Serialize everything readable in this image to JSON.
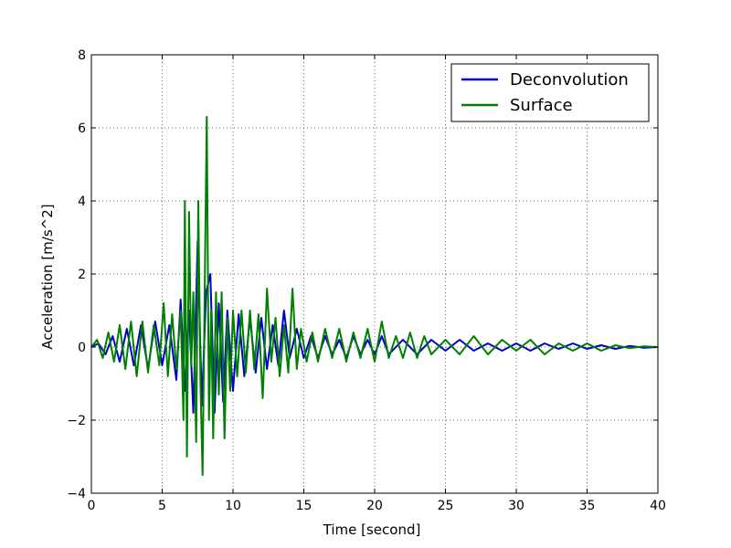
{
  "chart_data": {
    "type": "line",
    "title": "",
    "xlabel": "Time [second]",
    "ylabel": "Acceleration [m/s^2]",
    "xlim": [
      0,
      40
    ],
    "ylim": [
      -4,
      8
    ],
    "x_ticks": [
      "0",
      "5",
      "10",
      "15",
      "20",
      "25",
      "30",
      "35",
      "40"
    ],
    "y_ticks": [
      "−4",
      "−2",
      "0",
      "2",
      "4",
      "6",
      "8"
    ],
    "grid": true,
    "legend_position": "top-right",
    "series": [
      {
        "name": "Deconvolution",
        "color": "#0000cc",
        "points": [
          [
            0,
            0
          ],
          [
            0.5,
            0.1
          ],
          [
            1,
            -0.2
          ],
          [
            1.5,
            0.3
          ],
          [
            2,
            -0.4
          ],
          [
            2.5,
            0.5
          ],
          [
            3,
            -0.5
          ],
          [
            3.5,
            0.6
          ],
          [
            4,
            -0.6
          ],
          [
            4.5,
            0.7
          ],
          [
            5,
            -0.5
          ],
          [
            5.5,
            0.6
          ],
          [
            6,
            -0.9
          ],
          [
            6.3,
            1.3
          ],
          [
            6.6,
            -1.2
          ],
          [
            6.9,
            1.0
          ],
          [
            7.2,
            -1.8
          ],
          [
            7.5,
            2.9
          ],
          [
            7.8,
            -1.6
          ],
          [
            8.1,
            1.5
          ],
          [
            8.4,
            2.0
          ],
          [
            8.7,
            -1.8
          ],
          [
            9.0,
            1.2
          ],
          [
            9.3,
            -1.5
          ],
          [
            9.6,
            1.0
          ],
          [
            10,
            -1.2
          ],
          [
            10.4,
            0.9
          ],
          [
            10.8,
            -0.8
          ],
          [
            11.2,
            0.8
          ],
          [
            11.6,
            -0.7
          ],
          [
            12,
            0.8
          ],
          [
            12.4,
            -0.6
          ],
          [
            12.8,
            0.6
          ],
          [
            13.2,
            -0.5
          ],
          [
            13.6,
            1.0
          ],
          [
            14,
            -0.3
          ],
          [
            14.5,
            0.5
          ],
          [
            15,
            -0.3
          ],
          [
            15.5,
            0.3
          ],
          [
            16,
            -0.3
          ],
          [
            16.5,
            0.3
          ],
          [
            17,
            -0.2
          ],
          [
            17.5,
            0.2
          ],
          [
            18,
            -0.3
          ],
          [
            18.5,
            0.3
          ],
          [
            19,
            -0.2
          ],
          [
            19.5,
            0.2
          ],
          [
            20,
            -0.2
          ],
          [
            20.5,
            0.3
          ],
          [
            21,
            -0.2
          ],
          [
            22,
            0.2
          ],
          [
            23,
            -0.2
          ],
          [
            24,
            0.2
          ],
          [
            25,
            -0.1
          ],
          [
            26,
            0.2
          ],
          [
            27,
            -0.1
          ],
          [
            28,
            0.1
          ],
          [
            29,
            -0.1
          ],
          [
            30,
            0.1
          ],
          [
            31,
            -0.1
          ],
          [
            32,
            0.1
          ],
          [
            33,
            -0.05
          ],
          [
            34,
            0.1
          ],
          [
            35,
            -0.05
          ],
          [
            36,
            0.05
          ],
          [
            37,
            -0.05
          ],
          [
            38,
            0.03
          ],
          [
            39,
            -0.02
          ],
          [
            40,
            0
          ]
        ]
      },
      {
        "name": "Surface",
        "color": "#008000",
        "points": [
          [
            0,
            0
          ],
          [
            0.4,
            0.2
          ],
          [
            0.8,
            -0.3
          ],
          [
            1.2,
            0.4
          ],
          [
            1.6,
            -0.4
          ],
          [
            2,
            0.6
          ],
          [
            2.4,
            -0.6
          ],
          [
            2.8,
            0.7
          ],
          [
            3.2,
            -0.8
          ],
          [
            3.6,
            0.7
          ],
          [
            4,
            -0.7
          ],
          [
            4.4,
            0.6
          ],
          [
            4.8,
            -0.5
          ],
          [
            5.1,
            1.2
          ],
          [
            5.4,
            -0.8
          ],
          [
            5.7,
            0.9
          ],
          [
            6.0,
            -0.6
          ],
          [
            6.3,
            1.0
          ],
          [
            6.5,
            -2.0
          ],
          [
            6.6,
            4.0
          ],
          [
            6.75,
            -3.0
          ],
          [
            6.9,
            3.7
          ],
          [
            7.05,
            -0.5
          ],
          [
            7.2,
            1.5
          ],
          [
            7.4,
            -2.6
          ],
          [
            7.55,
            4.0
          ],
          [
            7.7,
            -1.0
          ],
          [
            7.85,
            -3.5
          ],
          [
            8.0,
            1.5
          ],
          [
            8.15,
            6.3
          ],
          [
            8.3,
            -2.0
          ],
          [
            8.45,
            1.0
          ],
          [
            8.6,
            -2.5
          ],
          [
            8.8,
            1.5
          ],
          [
            9.0,
            -1.3
          ],
          [
            9.2,
            1.5
          ],
          [
            9.4,
            -2.5
          ],
          [
            9.6,
            0.8
          ],
          [
            9.8,
            -1.2
          ],
          [
            10.0,
            1.0
          ],
          [
            10.3,
            -0.8
          ],
          [
            10.6,
            1.0
          ],
          [
            10.9,
            -0.7
          ],
          [
            11.2,
            1.0
          ],
          [
            11.5,
            -0.6
          ],
          [
            11.8,
            0.9
          ],
          [
            12.1,
            -1.4
          ],
          [
            12.4,
            1.6
          ],
          [
            12.7,
            -0.4
          ],
          [
            13.0,
            0.8
          ],
          [
            13.3,
            -0.8
          ],
          [
            13.6,
            0.6
          ],
          [
            13.9,
            -0.7
          ],
          [
            14.2,
            1.6
          ],
          [
            14.5,
            -0.6
          ],
          [
            14.8,
            0.5
          ],
          [
            15.2,
            -0.4
          ],
          [
            15.6,
            0.4
          ],
          [
            16,
            -0.4
          ],
          [
            16.5,
            0.5
          ],
          [
            17,
            -0.3
          ],
          [
            17.5,
            0.5
          ],
          [
            18,
            -0.4
          ],
          [
            18.5,
            0.4
          ],
          [
            19,
            -0.3
          ],
          [
            19.5,
            0.5
          ],
          [
            20,
            -0.4
          ],
          [
            20.5,
            0.7
          ],
          [
            21,
            -0.3
          ],
          [
            21.5,
            0.3
          ],
          [
            22,
            -0.3
          ],
          [
            22.5,
            0.4
          ],
          [
            23,
            -0.3
          ],
          [
            23.5,
            0.3
          ],
          [
            24,
            -0.2
          ],
          [
            25,
            0.2
          ],
          [
            26,
            -0.2
          ],
          [
            27,
            0.3
          ],
          [
            28,
            -0.2
          ],
          [
            29,
            0.2
          ],
          [
            30,
            -0.1
          ],
          [
            31,
            0.2
          ],
          [
            32,
            -0.2
          ],
          [
            33,
            0.1
          ],
          [
            34,
            -0.1
          ],
          [
            35,
            0.1
          ],
          [
            36,
            -0.1
          ],
          [
            37,
            0.05
          ],
          [
            38,
            -0.03
          ],
          [
            39,
            0.02
          ],
          [
            40,
            0
          ]
        ]
      }
    ]
  }
}
